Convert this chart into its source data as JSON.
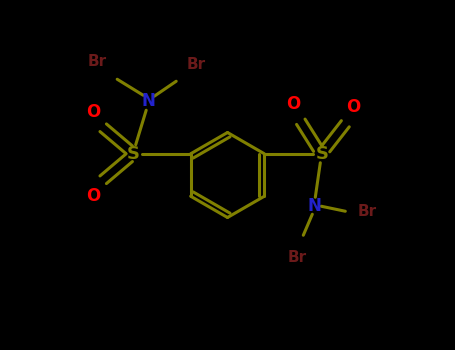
{
  "background_color": "#000000",
  "text_color_N": "#2222cc",
  "text_color_S": "#808000",
  "text_color_O": "#ff0000",
  "text_color_Br": "#6b1a1a",
  "bond_color": "#808000",
  "ring_bond_color": "#808000",
  "figsize": [
    4.55,
    3.5
  ],
  "dpi": 100,
  "xlim": [
    0,
    9.1
  ],
  "ylim": [
    0,
    7.0
  ]
}
